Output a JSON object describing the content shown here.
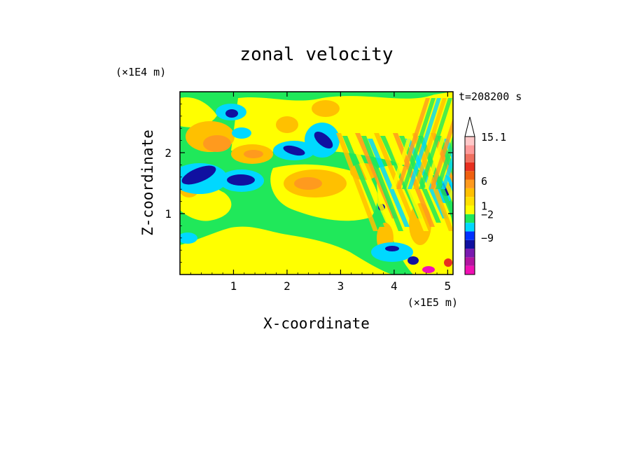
{
  "chart_data": {
    "type": "heatmap",
    "title": "zonal velocity",
    "xlabel": "X-coordinate",
    "ylabel": "Z-coordinate",
    "x_unit": "(×1E5 m)",
    "y_unit": "(×1E4 m)",
    "time_label": "t=208200 s",
    "xlim": [
      0,
      5.1
    ],
    "ylim": [
      0,
      3.0
    ],
    "x_ticks": [
      "1",
      "2",
      "3",
      "4",
      "5"
    ],
    "y_ticks": [
      "1",
      "2"
    ],
    "colorbar": {
      "levels": [
        -9,
        -2,
        1,
        6,
        15.1
      ],
      "tick_labels": [
        "15.1",
        "6",
        "1",
        "−2",
        "−9"
      ],
      "colors": [
        "#f010b4",
        "#b314a0",
        "#7a1ab0",
        "#1010a0",
        "#0030ff",
        "#00d8ff",
        "#20e85a",
        "#ffff00",
        "#ffe000",
        "#ffc000",
        "#ff9a1e",
        "#f06010",
        "#e83020",
        "#f07060",
        "#ff9a9a",
        "#ffc8c8"
      ]
    }
  }
}
